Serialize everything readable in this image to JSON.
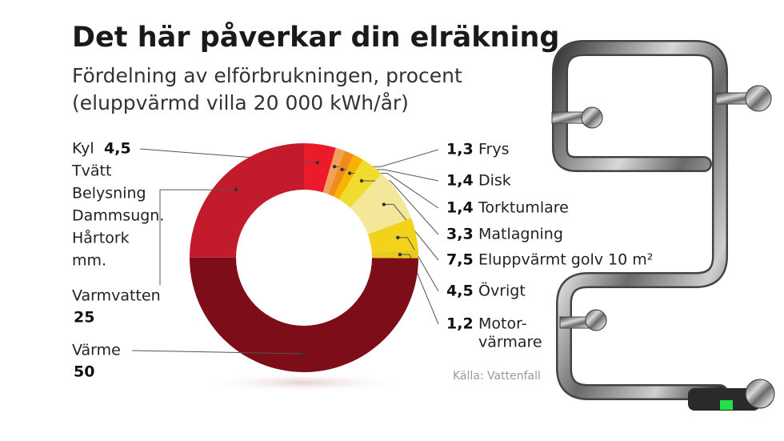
{
  "chart_data": {
    "type": "donut",
    "title": "Det här påverkar din elräkning",
    "subtitle": [
      "Fördelning av elförbrukningen, procent",
      "(eluppvärmd villa 20 000 kWh/år)"
    ],
    "source": "Källa: Vattenfall",
    "categories": [
      [
        "Kyl",
        "Tvätt",
        "Belysning",
        "Dammsugn.",
        "Hårtork",
        "mm."
      ],
      [
        "Frys"
      ],
      [
        "Disk"
      ],
      [
        "Torktumlare"
      ],
      [
        "Matlagning"
      ],
      [
        "Eluppvärmt golv 10 m²"
      ],
      [
        "Övrigt"
      ],
      [
        "Motor-",
        "värmare"
      ],
      [
        "Värme"
      ],
      [
        "Varmvatten"
      ]
    ],
    "values": [
      4.5,
      1.3,
      1.4,
      1.4,
      3.3,
      7.5,
      4.5,
      1.2,
      50,
      25
    ],
    "value_labels": [
      "4,5",
      "1,3",
      "1,4",
      "1,4",
      "3,3",
      "7,5",
      "4,5",
      "1,2",
      "50",
      "25"
    ],
    "colors": [
      "#ec1b2c",
      "#f2a15a",
      "#f08c1c",
      "#f6b400",
      "#f0dc2e",
      "#f3e79a",
      "#f2d21a",
      "#e9c820",
      "#7d0d18",
      "#c21b2b"
    ]
  }
}
